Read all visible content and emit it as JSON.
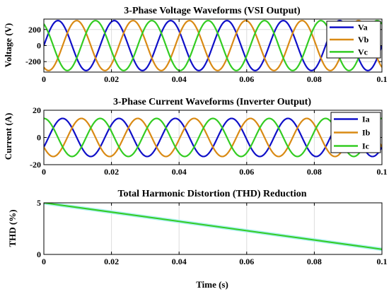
{
  "chart_data": [
    {
      "type": "line",
      "title": "3-Phase Voltage Waveforms (VSI Output)",
      "xlabel": "",
      "ylabel": "Voltage (V)",
      "xlim": [
        0,
        0.1
      ],
      "ylim": [
        -330,
        330
      ],
      "xticks": [
        0,
        0.02,
        0.04,
        0.06,
        0.08,
        0.1
      ],
      "xtick_labels": [
        "0",
        "0.02",
        "0.04",
        "0.06",
        "0.08",
        "0.1"
      ],
      "yticks": [
        -200,
        0,
        200
      ],
      "ytick_labels": [
        "-200",
        "0",
        "200"
      ],
      "grid": true,
      "legend_position": "top-right",
      "frequency_hz": 60,
      "series": [
        {
          "name": "Va",
          "amplitude": 311,
          "phase_deg": 0,
          "color": "#1010c8"
        },
        {
          "name": "Vb",
          "amplitude": 311,
          "phase_deg": -120,
          "color": "#d98a14"
        },
        {
          "name": "Vc",
          "amplitude": 311,
          "phase_deg": 120,
          "color": "#33cc22"
        }
      ]
    },
    {
      "type": "line",
      "title": "3-Phase Current Waveforms (Inverter Output)",
      "xlabel": "",
      "ylabel": "Current (A)",
      "xlim": [
        0,
        0.1
      ],
      "ylim": [
        -20,
        20
      ],
      "xticks": [
        0,
        0.02,
        0.04,
        0.06,
        0.08,
        0.1
      ],
      "xtick_labels": [
        "0",
        "0.02",
        "0.04",
        "0.06",
        "0.08",
        "0.1"
      ],
      "yticks": [
        -20,
        0,
        20
      ],
      "ytick_labels": [
        "-20",
        "0",
        "20"
      ],
      "grid": true,
      "legend_position": "top-right",
      "frequency_hz": 60,
      "series": [
        {
          "name": "Ia",
          "amplitude": 14,
          "phase_deg": -30,
          "color": "#1010c8"
        },
        {
          "name": "Ib",
          "amplitude": 14,
          "phase_deg": -150,
          "color": "#d98a14"
        },
        {
          "name": "Ic",
          "amplitude": 14,
          "phase_deg": 90,
          "color": "#33cc22"
        }
      ]
    },
    {
      "type": "line",
      "title": "Total Harmonic Distortion (THD) Reduction",
      "xlabel": "Time (s)",
      "ylabel": "THD (%)",
      "xlim": [
        0,
        0.1
      ],
      "ylim": [
        0,
        5
      ],
      "xticks": [
        0,
        0.02,
        0.04,
        0.06,
        0.08,
        0.1
      ],
      "xtick_labels": [
        "0",
        "0.02",
        "0.04",
        "0.06",
        "0.08",
        "0.1"
      ],
      "yticks": [
        0,
        5
      ],
      "ytick_labels": [
        "0",
        "5"
      ],
      "grid": true,
      "series": [
        {
          "name": "",
          "x": [
            0,
            0.1
          ],
          "y": [
            5.0,
            0.5
          ],
          "color": "#33cc22",
          "band_color": "#aaf0f0"
        }
      ]
    }
  ]
}
